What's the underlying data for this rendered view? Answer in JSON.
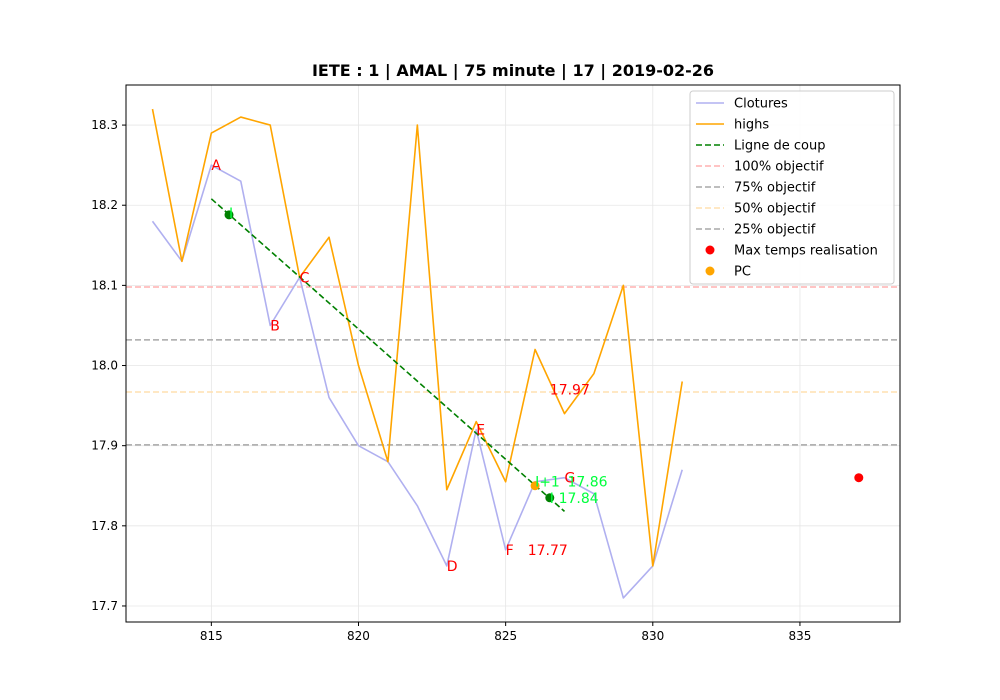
{
  "chart_data": {
    "type": "line",
    "title": "IETE : 1 | AMAL | 75 minute | 17 | 2019-02-26",
    "xlabel": "",
    "ylabel": "",
    "xlim": [
      812.1,
      838.4
    ],
    "ylim": [
      17.68,
      18.35
    ],
    "xticks": [
      815,
      820,
      825,
      830,
      835
    ],
    "yticks": [
      17.7,
      17.8,
      17.9,
      18.0,
      18.1,
      18.2,
      18.3
    ],
    "ytick_labels": [
      "17.7",
      "17.8",
      "17.9",
      "18.0",
      "18.1",
      "18.2",
      "18.3"
    ],
    "grid": true,
    "legend_position": "top-right",
    "colors": {
      "closes": "#b0b0f0",
      "highs": "#ffa500",
      "trend": "#008000",
      "obj100": "#ffb0b0",
      "obj75": "#a8a8a8",
      "obj50": "#ffe0b0",
      "obj25": "#a8a8a8",
      "max_time": "#ff0000",
      "pc": "#ffa500",
      "red_text": "#ff0000",
      "green_text": "#00ff3c",
      "green_dot": "#008000"
    },
    "series": [
      {
        "name": "Clotures",
        "kind": "line",
        "x": [
          813,
          814,
          815,
          816,
          817,
          818,
          819,
          820,
          821,
          822,
          823,
          824,
          825,
          826,
          827,
          828,
          829,
          830,
          831
        ],
        "y": [
          18.18,
          18.13,
          18.25,
          18.23,
          18.05,
          18.11,
          17.96,
          17.9,
          17.88,
          17.825,
          17.75,
          17.92,
          17.77,
          17.855,
          17.86,
          17.84,
          17.71,
          17.75,
          17.87
        ]
      },
      {
        "name": "highs",
        "kind": "line",
        "x": [
          813,
          814,
          815,
          816,
          817,
          818,
          819,
          820,
          821,
          822,
          823,
          824,
          825,
          826,
          827,
          828,
          829,
          830,
          831
        ],
        "y": [
          18.32,
          18.13,
          18.29,
          18.31,
          18.3,
          18.11,
          18.16,
          18.0,
          17.88,
          18.3,
          17.845,
          17.93,
          17.855,
          18.02,
          17.94,
          17.99,
          18.1,
          17.75,
          17.98
        ]
      },
      {
        "name": "Ligne de coup",
        "kind": "dashed-line",
        "x": [
          815.0,
          827.0
        ],
        "y": [
          18.208,
          17.818
        ]
      }
    ],
    "hlines": [
      {
        "name": "100% objectif",
        "y": 18.098,
        "key": "obj100"
      },
      {
        "name": "75% objectif",
        "y": 18.032,
        "key": "obj75"
      },
      {
        "name": "50% objectif",
        "y": 17.967,
        "key": "obj50"
      },
      {
        "name": "25% objectif",
        "y": 17.901,
        "key": "obj25"
      }
    ],
    "scatter": [
      {
        "name": "Max temps realisation",
        "x": [
          837
        ],
        "y": [
          17.86
        ],
        "key": "max_time"
      },
      {
        "name": "PC",
        "x": [
          826
        ],
        "y": [
          17.85
        ],
        "key": "pc"
      }
    ],
    "green_points": [
      {
        "x": 815.6,
        "y": 18.188
      },
      {
        "x": 826.5,
        "y": 17.835
      }
    ],
    "annotations": [
      {
        "text": "A",
        "x": 815.0,
        "y": 18.25,
        "color": "red"
      },
      {
        "text": "B",
        "x": 817.0,
        "y": 18.05,
        "color": "red"
      },
      {
        "text": "C",
        "x": 818.0,
        "y": 18.11,
        "color": "red"
      },
      {
        "text": "D",
        "x": 823.0,
        "y": 17.75,
        "color": "red"
      },
      {
        "text": "E",
        "x": 824.0,
        "y": 17.92,
        "color": "red"
      },
      {
        "text": "F",
        "x": 825.0,
        "y": 17.77,
        "color": "red"
      },
      {
        "text": "G",
        "x": 827.0,
        "y": 17.86,
        "color": "red"
      },
      {
        "text": "17.97",
        "x": 826.5,
        "y": 17.97,
        "color": "red"
      },
      {
        "text": "17.77",
        "x": 825.75,
        "y": 17.77,
        "color": "red"
      },
      {
        "text": "I",
        "x": 815.6,
        "y": 18.19,
        "color": "green"
      },
      {
        "text": "I+1",
        "x": 826.0,
        "y": 17.855,
        "color": "green"
      },
      {
        "text": "17.86",
        "x": 827.1,
        "y": 17.855,
        "color": "green"
      },
      {
        "text": "I",
        "x": 826.5,
        "y": 17.835,
        "color": "green"
      },
      {
        "text": "17.84",
        "x": 826.8,
        "y": 17.835,
        "color": "green"
      }
    ],
    "legend": [
      {
        "label": "Clotures",
        "style": "line",
        "key": "closes"
      },
      {
        "label": "highs",
        "style": "line",
        "key": "highs"
      },
      {
        "label": "Ligne de coup",
        "style": "dashed",
        "key": "trend"
      },
      {
        "label": "100% objectif",
        "style": "dashed",
        "key": "obj100"
      },
      {
        "label": "75% objectif",
        "style": "dashed",
        "key": "obj75"
      },
      {
        "label": "50% objectif",
        "style": "dashed",
        "key": "obj50"
      },
      {
        "label": "25% objectif",
        "style": "dashed",
        "key": "obj25"
      },
      {
        "label": "Max temps realisation",
        "style": "dot",
        "key": "max_time"
      },
      {
        "label": "PC",
        "style": "dot",
        "key": "pc"
      }
    ]
  }
}
